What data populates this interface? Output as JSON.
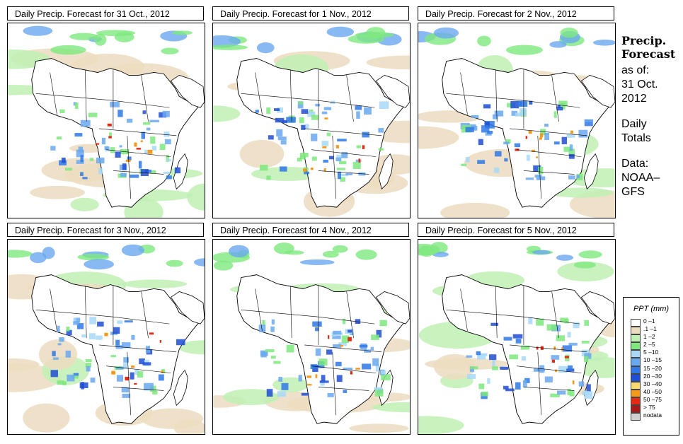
{
  "panels": [
    {
      "title": "Daily Precip. Forecast for  31 Oct., 2012"
    },
    {
      "title": "Daily Precip. Forecast for  1 Nov., 2012"
    },
    {
      "title": "Daily Precip. Forecast for  2 Nov., 2012"
    },
    {
      "title": "Daily Precip. Forecast for  3 Nov., 2012"
    },
    {
      "title": "Daily Precip. Forecast for  4 Nov., 2012"
    },
    {
      "title": "Daily Precip. Forecast for  5 Nov., 2012"
    }
  ],
  "side": {
    "heading_line1": "Precip.",
    "heading_line2": "Forecast",
    "asof": "as of:",
    "date_line1": "31 Oct.",
    "date_line2": "2012",
    "totals_line1": "Daily",
    "totals_line2": "Totals",
    "data_line1": "Data:",
    "data_line2": "NOAA–",
    "data_line3": "GFS"
  },
  "legend": {
    "title": "PPT (mm)",
    "items": [
      {
        "label": "0 –1",
        "color": "#ffffff"
      },
      {
        "label": ".1 –1",
        "color": "#ecdcc0"
      },
      {
        "label": "1 –2",
        "color": "#bff0b4"
      },
      {
        "label": "2 –5",
        "color": "#7ee87e"
      },
      {
        "label": "5 –10",
        "color": "#a8d8f8"
      },
      {
        "label": "10 –15",
        "color": "#6aa8f0"
      },
      {
        "label": "15 –20",
        "color": "#2f78e6"
      },
      {
        "label": "20 –30",
        "color": "#1f4ed4"
      },
      {
        "label": "30 –40",
        "color": "#f8d870"
      },
      {
        "label": "40 –50",
        "color": "#f49a1a"
      },
      {
        "label": "50 –75",
        "color": "#e42a14"
      },
      {
        "label": "> 75",
        "color": "#a81a1a"
      },
      {
        "label": "nodata",
        "color": "#d0d0d0"
      }
    ]
  }
}
